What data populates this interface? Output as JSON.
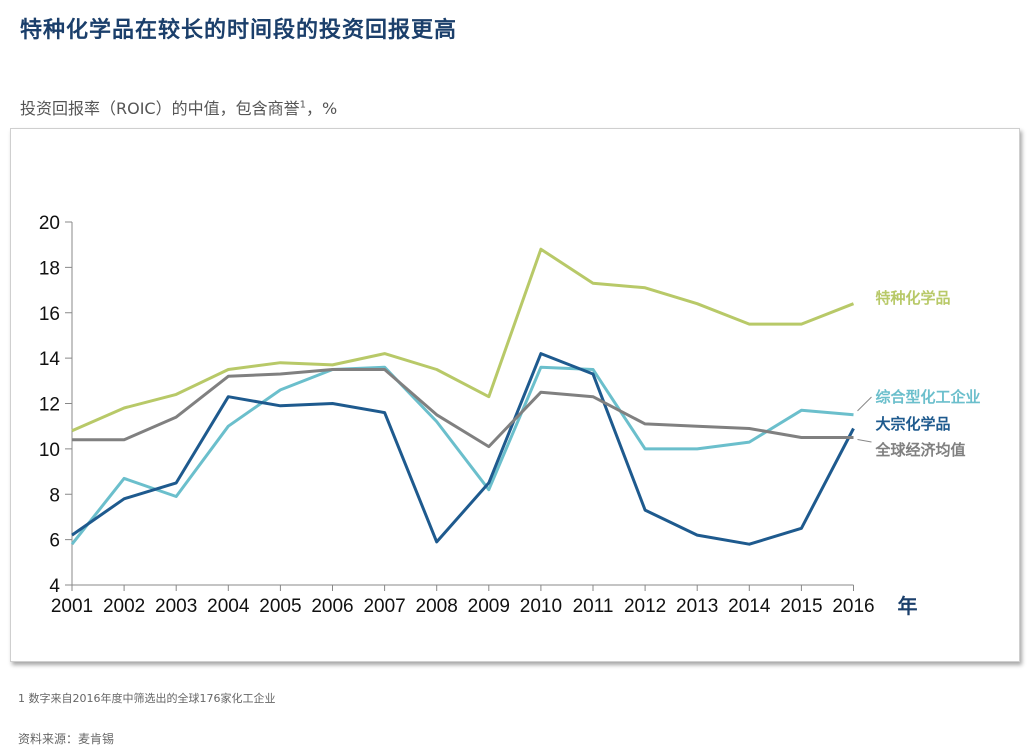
{
  "title": "特种化学品在较长的时间段的投资回报更高",
  "subtitle": {
    "text": "投资回报率（ROIC）的中值，包含商誉",
    "footnote_marker": "1",
    "unit": "，%"
  },
  "footnote": "1 数字来自2016年度中筛选出的全球176家化工企业",
  "source": "资料来源：麦肯锡",
  "chart_data": {
    "type": "line",
    "x": [
      "2001",
      "2002",
      "2003",
      "2004",
      "2005",
      "2006",
      "2007",
      "2008",
      "2009",
      "2010",
      "2011",
      "2012",
      "2013",
      "2014",
      "2015",
      "2016"
    ],
    "xunit": "年",
    "ylim": [
      4,
      20
    ],
    "yticks": [
      4,
      6,
      8,
      10,
      12,
      14,
      16,
      18,
      20
    ],
    "grid": false,
    "series": [
      {
        "name": "特种化学品",
        "color": "#b8c968",
        "values": [
          10.8,
          11.8,
          12.4,
          13.5,
          13.8,
          13.7,
          14.2,
          13.5,
          12.3,
          18.8,
          17.3,
          17.1,
          16.4,
          15.5,
          15.5,
          16.4
        ]
      },
      {
        "name": "综合型化工企业",
        "color": "#6bbfcc",
        "values": [
          5.8,
          8.7,
          7.9,
          11.0,
          12.6,
          13.5,
          13.6,
          11.2,
          8.2,
          13.6,
          13.5,
          10.0,
          10.0,
          10.3,
          11.7,
          11.5
        ]
      },
      {
        "name": "大宗化学品",
        "color": "#1e5a8e",
        "values": [
          6.2,
          7.8,
          8.5,
          12.3,
          11.9,
          12.0,
          11.6,
          5.9,
          8.5,
          14.2,
          13.3,
          7.3,
          6.2,
          5.8,
          6.5,
          10.9
        ]
      },
      {
        "name": "全球经济均值",
        "color": "#808080",
        "values": [
          10.4,
          10.4,
          11.4,
          13.2,
          13.3,
          13.5,
          13.5,
          11.5,
          10.1,
          12.5,
          12.3,
          11.1,
          11.0,
          10.9,
          10.5,
          10.5
        ]
      }
    ]
  }
}
